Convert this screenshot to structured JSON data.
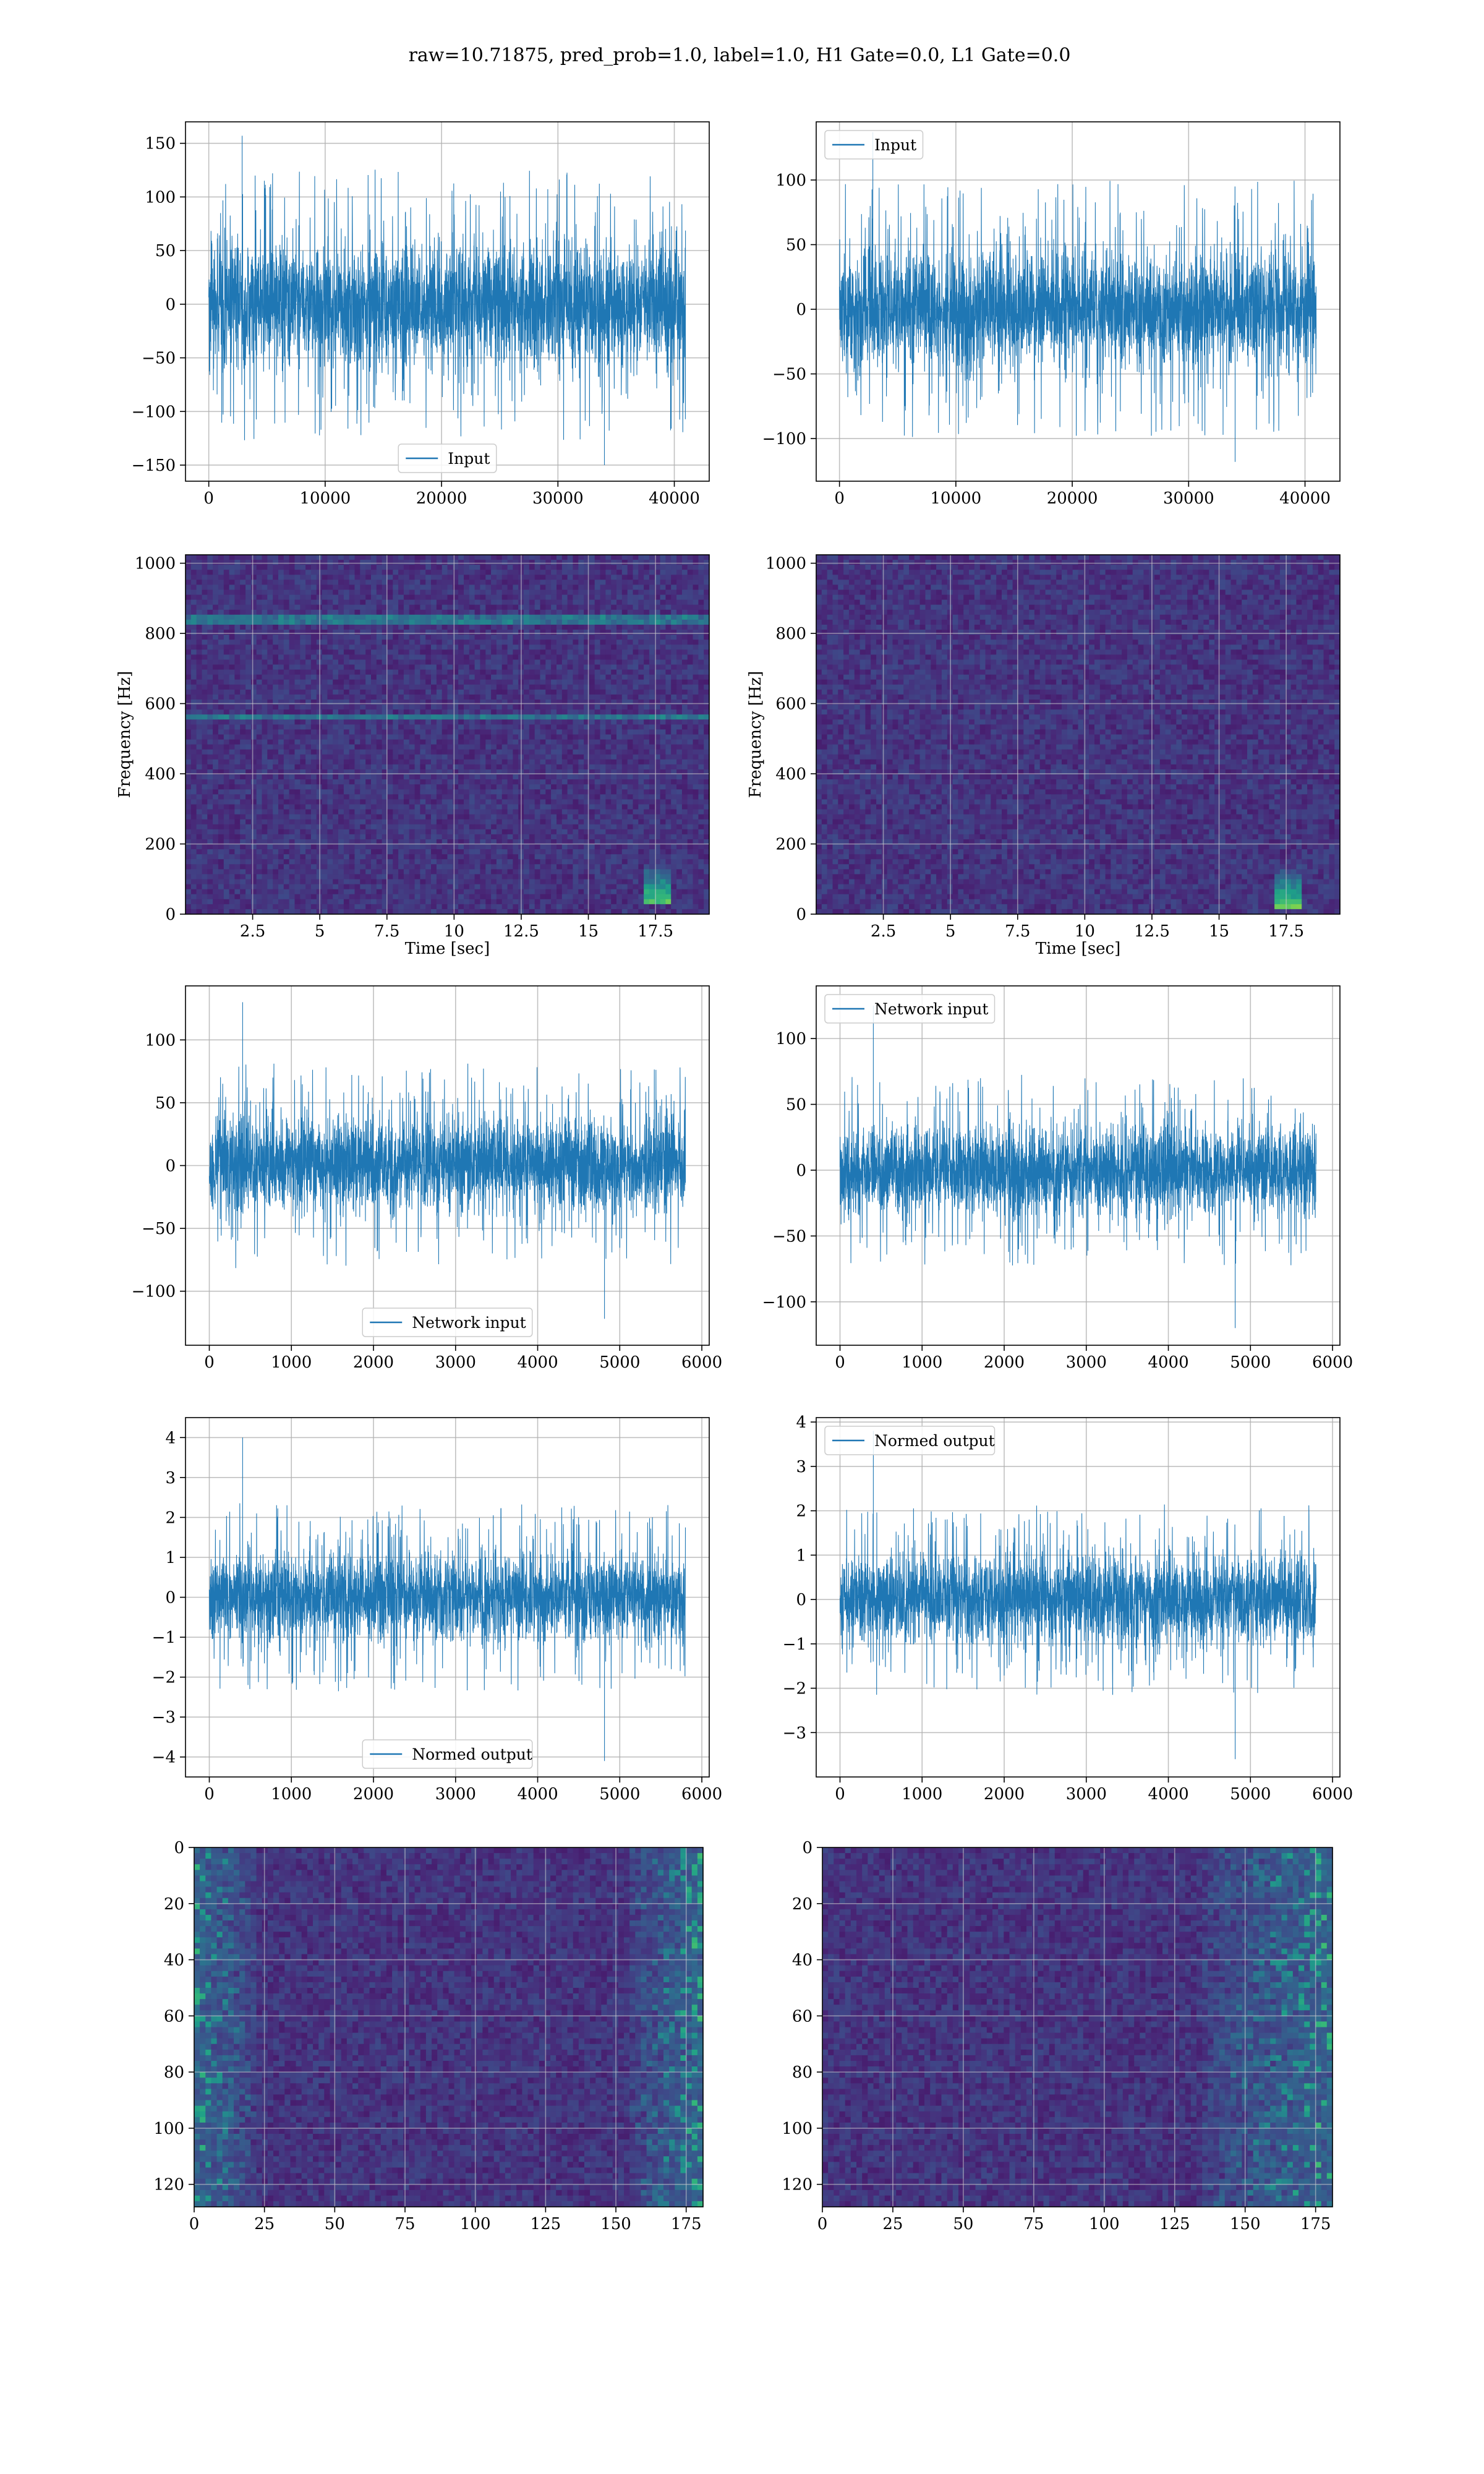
{
  "figure_title": "raw=10.71875, pred_prob=1.0, label=1.0, H1 Gate=0.0, L1 Gate=0.0",
  "colors": {
    "line": "#1f77b4",
    "grid": "#b0b0b0",
    "viridis_low": "#440154",
    "viridis_mid": "#21918c",
    "viridis_high": "#fde725"
  },
  "chart_data": [
    {
      "id": "input-left",
      "type": "line",
      "series": [
        {
          "name": "Input",
          "kind": "noise",
          "n_samples": 40960,
          "typical_amplitude": 70,
          "min": -150,
          "max": 157
        }
      ],
      "legend": {
        "placement": "lower center",
        "label": "Input"
      },
      "xlim": [
        -2000,
        43000
      ],
      "ylim": [
        -165,
        170
      ],
      "xticks": [
        0,
        10000,
        20000,
        30000,
        40000
      ],
      "yticks": [
        -150,
        -100,
        -50,
        0,
        50,
        100,
        150
      ],
      "grid": true,
      "xlabel": "",
      "ylabel": ""
    },
    {
      "id": "input-right",
      "type": "line",
      "series": [
        {
          "name": "Input",
          "kind": "noise",
          "n_samples": 40960,
          "typical_amplitude": 55,
          "min": -118,
          "max": 137
        }
      ],
      "legend": {
        "placement": "upper left",
        "label": "Input"
      },
      "xlim": [
        -2000,
        43000
      ],
      "ylim": [
        -133,
        145
      ],
      "xticks": [
        0,
        10000,
        20000,
        30000,
        40000
      ],
      "yticks": [
        -100,
        -50,
        0,
        50,
        100
      ],
      "grid": true,
      "xlabel": "",
      "ylabel": ""
    },
    {
      "id": "spectrogram-left",
      "type": "heatmap",
      "colormap": "viridis",
      "xlim": [
        0,
        19.5
      ],
      "ylim": [
        0,
        1024
      ],
      "xticks": [
        2.5,
        5.0,
        7.5,
        10.0,
        12.5,
        15.0,
        17.5
      ],
      "yticks": [
        0,
        200,
        400,
        600,
        800,
        1000
      ],
      "xlabel": "Time [sec]",
      "ylabel": "Frequency [Hz]",
      "grid": true,
      "features": [
        {
          "kind": "line",
          "freq": 835
        },
        {
          "kind": "line",
          "freq": 560
        },
        {
          "kind": "chirp_end",
          "time": 17.5,
          "freq": 60
        }
      ]
    },
    {
      "id": "spectrogram-right",
      "type": "heatmap",
      "colormap": "viridis",
      "xlim": [
        0,
        19.5
      ],
      "ylim": [
        0,
        1024
      ],
      "xticks": [
        2.5,
        5.0,
        7.5,
        10.0,
        12.5,
        15.0,
        17.5
      ],
      "yticks": [
        0,
        200,
        400,
        600,
        800,
        1000
      ],
      "xlabel": "Time [sec]",
      "ylabel": "Frequency [Hz]",
      "grid": true,
      "features": [
        {
          "kind": "chirp_end",
          "time": 17.6,
          "freq": 50
        }
      ]
    },
    {
      "id": "network-input-left",
      "type": "line",
      "series": [
        {
          "name": "Network input",
          "kind": "noise",
          "n_samples": 5800,
          "typical_amplitude": 45,
          "min": -122,
          "max": 130
        }
      ],
      "legend": {
        "placement": "lower center",
        "label": "Network input"
      },
      "xlim": [
        -290,
        6090
      ],
      "ylim": [
        -143,
        143
      ],
      "xticks": [
        0,
        1000,
        2000,
        3000,
        4000,
        5000,
        6000
      ],
      "yticks": [
        -100,
        -50,
        0,
        50,
        100
      ],
      "grid": true,
      "xlabel": "",
      "ylabel": ""
    },
    {
      "id": "network-input-right",
      "type": "line",
      "series": [
        {
          "name": "Network input",
          "kind": "noise",
          "n_samples": 5800,
          "typical_amplitude": 40,
          "min": -120,
          "max": 125
        }
      ],
      "legend": {
        "placement": "upper left",
        "label": "Network input"
      },
      "xlim": [
        -290,
        6090
      ],
      "ylim": [
        -133,
        140
      ],
      "xticks": [
        0,
        1000,
        2000,
        3000,
        4000,
        5000,
        6000
      ],
      "yticks": [
        -100,
        -50,
        0,
        50,
        100
      ],
      "grid": true,
      "xlabel": "",
      "ylabel": ""
    },
    {
      "id": "normed-output-left",
      "type": "line",
      "series": [
        {
          "name": "Normed output",
          "kind": "noise",
          "n_samples": 5800,
          "typical_amplitude": 1.3,
          "min": -4.1,
          "max": 4.0
        }
      ],
      "legend": {
        "placement": "lower center",
        "label": "Normed output"
      },
      "xlim": [
        -290,
        6090
      ],
      "ylim": [
        -4.5,
        4.5
      ],
      "xticks": [
        0,
        1000,
        2000,
        3000,
        4000,
        5000,
        6000
      ],
      "yticks": [
        -4,
        -3,
        -2,
        -1,
        0,
        1,
        2,
        3,
        4
      ],
      "grid": true,
      "xlabel": "",
      "ylabel": ""
    },
    {
      "id": "normed-output-right",
      "type": "line",
      "series": [
        {
          "name": "Normed output",
          "kind": "noise",
          "n_samples": 5800,
          "typical_amplitude": 1.2,
          "min": -3.6,
          "max": 3.8
        }
      ],
      "legend": {
        "placement": "upper left",
        "label": "Normed output"
      },
      "xlim": [
        -290,
        6090
      ],
      "ylim": [
        -4.0,
        4.1
      ],
      "xticks": [
        0,
        1000,
        2000,
        3000,
        4000,
        5000,
        6000
      ],
      "yticks": [
        -3,
        -2,
        -1,
        0,
        1,
        2,
        3,
        4
      ],
      "grid": true,
      "xlabel": "",
      "ylabel": ""
    },
    {
      "id": "feature-map-left",
      "type": "heatmap",
      "colormap": "viridis",
      "xlim": [
        0,
        181
      ],
      "ylim": [
        128,
        0
      ],
      "xticks": [
        0,
        25,
        50,
        75,
        100,
        125,
        150,
        175
      ],
      "yticks": [
        0,
        20,
        40,
        60,
        80,
        100,
        120
      ],
      "grid": true,
      "xlabel": "",
      "ylabel": "",
      "features": [
        {
          "kind": "bright_band",
          "x_from": 0,
          "x_to": 22
        },
        {
          "kind": "bright_band",
          "x_from": 155,
          "x_to": 181
        }
      ]
    },
    {
      "id": "feature-map-right",
      "type": "heatmap",
      "colormap": "viridis",
      "xlim": [
        0,
        181
      ],
      "ylim": [
        128,
        0
      ],
      "xticks": [
        0,
        25,
        50,
        75,
        100,
        125,
        150,
        175
      ],
      "yticks": [
        0,
        20,
        40,
        60,
        80,
        100,
        120
      ],
      "grid": true,
      "xlabel": "",
      "ylabel": "",
      "features": [
        {
          "kind": "bright_band",
          "x_from": 135,
          "x_to": 181
        }
      ]
    }
  ]
}
